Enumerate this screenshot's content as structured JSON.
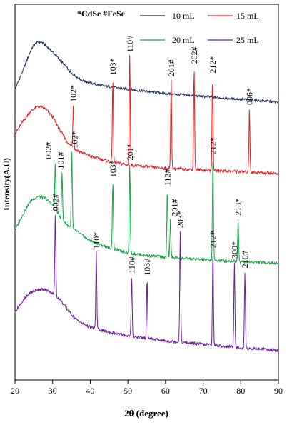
{
  "chart_data": {
    "type": "line",
    "title": "",
    "xlabel": "2θ (degree)",
    "ylabel": "Intensity(A.U)",
    "xlim": [
      20,
      90
    ],
    "x_ticks": [
      20,
      30,
      40,
      50,
      60,
      70,
      80,
      90
    ],
    "x_tick_labels": [
      "20",
      "30",
      "40",
      "50",
      "60",
      "70",
      "80",
      "90"
    ],
    "yaxis_ticks": false,
    "grid": false,
    "legend": {
      "placement": "top",
      "header": "*CdSe #FeSe",
      "entries": [
        "10 mL",
        "15 mL",
        "20 mL",
        "25 mL"
      ]
    },
    "colors": {
      "10 mL": "#1f2f5c",
      "15 mL": "#e11b22",
      "20 mL": "#16a34a",
      "25 mL": "#6a1f9a"
    },
    "series": [
      {
        "name": "10 mL",
        "background": [
          [
            20,
            0.2
          ],
          [
            22,
            0.45
          ],
          [
            24,
            0.72
          ],
          [
            25,
            0.82
          ],
          [
            26,
            0.86
          ],
          [
            27,
            0.86
          ],
          [
            28,
            0.82
          ],
          [
            30,
            0.72
          ],
          [
            33,
            0.55
          ],
          [
            35,
            0.42
          ],
          [
            38,
            0.32
          ],
          [
            42,
            0.26
          ],
          [
            50,
            0.2
          ],
          [
            60,
            0.14
          ],
          [
            70,
            0.1
          ],
          [
            80,
            0.06
          ],
          [
            88,
            0.03
          ],
          [
            90,
            0.02
          ]
        ],
        "peaks": []
      },
      {
        "name": "15 mL",
        "background": [
          [
            20,
            0.62
          ],
          [
            22,
            0.76
          ],
          [
            24,
            0.88
          ],
          [
            26,
            0.94
          ],
          [
            28,
            0.92
          ],
          [
            30,
            0.82
          ],
          [
            32,
            0.66
          ],
          [
            34,
            0.52
          ],
          [
            36,
            0.44
          ],
          [
            38,
            0.4
          ],
          [
            40,
            0.36
          ],
          [
            45,
            0.3
          ],
          [
            50,
            0.26
          ],
          [
            60,
            0.22
          ],
          [
            70,
            0.2
          ],
          [
            80,
            0.18
          ],
          [
            90,
            0.16
          ]
        ],
        "peaks": [
          {
            "x": 35.5,
            "height": 0.5,
            "label": "102*"
          },
          {
            "x": 46.0,
            "height": 0.98,
            "label": "103*"
          },
          {
            "x": 50.5,
            "height": 1.28,
            "label": "110#"
          },
          {
            "x": 61.5,
            "height": 1.04,
            "label": "201#"
          },
          {
            "x": 67.6,
            "height": 1.2,
            "label": "202#"
          },
          {
            "x": 72.5,
            "height": 1.1,
            "label": "212*"
          },
          {
            "x": 82.3,
            "height": 0.75,
            "label": "006*"
          }
        ]
      },
      {
        "name": "20 mL",
        "background": [
          [
            20,
            0.46
          ],
          [
            22,
            0.64
          ],
          [
            24,
            0.8
          ],
          [
            26,
            0.86
          ],
          [
            28,
            0.84
          ],
          [
            30,
            0.76
          ],
          [
            32,
            0.62
          ],
          [
            34,
            0.52
          ],
          [
            36,
            0.46
          ],
          [
            38,
            0.4
          ],
          [
            40,
            0.34
          ],
          [
            45,
            0.26
          ],
          [
            50,
            0.2
          ],
          [
            55,
            0.17
          ],
          [
            60,
            0.15
          ],
          [
            70,
            0.12
          ],
          [
            80,
            0.1
          ],
          [
            90,
            0.08
          ]
        ],
        "peaks": [
          {
            "x": 30.7,
            "height": 0.55,
            "label": "002#"
          },
          {
            "x": 32.5,
            "height": 0.55,
            "label": "101#"
          },
          {
            "x": 35.1,
            "height": 0.9,
            "label": "102*"
          },
          {
            "x": 46.0,
            "height": 0.8,
            "label": "103*"
          },
          {
            "x": 50.5,
            "height": 1.05,
            "label": "201*"
          },
          {
            "x": 60.5,
            "height": 0.8,
            "label": "112#"
          },
          {
            "x": 61.3,
            "height": 0.45,
            "label": "201#"
          },
          {
            "x": 72.6,
            "height": 1.2,
            "label": "212*"
          },
          {
            "x": 79.3,
            "height": 0.5,
            "label": "213*"
          }
        ]
      },
      {
        "name": "25 mL",
        "background": [
          [
            20,
            0.48
          ],
          [
            22,
            0.6
          ],
          [
            24,
            0.7
          ],
          [
            26,
            0.74
          ],
          [
            28,
            0.74
          ],
          [
            30,
            0.7
          ],
          [
            32,
            0.62
          ],
          [
            34,
            0.5
          ],
          [
            36,
            0.4
          ],
          [
            38,
            0.34
          ],
          [
            40,
            0.3
          ],
          [
            45,
            0.24
          ],
          [
            50,
            0.2
          ],
          [
            60,
            0.14
          ],
          [
            70,
            0.1
          ],
          [
            80,
            0.06
          ],
          [
            90,
            0.03
          ]
        ],
        "peaks": [
          {
            "x": 30.7,
            "height": 0.95,
            "label": "002#"
          },
          {
            "x": 41.6,
            "height": 0.9,
            "label": "110*"
          },
          {
            "x": 51.0,
            "height": 0.7,
            "label": "110#"
          },
          {
            "x": 55.1,
            "height": 0.7,
            "label": "103#"
          },
          {
            "x": 63.9,
            "height": 1.3,
            "label": "203*"
          },
          {
            "x": 72.6,
            "height": 1.1,
            "label": "212*"
          },
          {
            "x": 78.3,
            "height": 1.0,
            "label": "300*"
          },
          {
            "x": 81.1,
            "height": 0.9,
            "label": "210#"
          }
        ]
      }
    ]
  }
}
